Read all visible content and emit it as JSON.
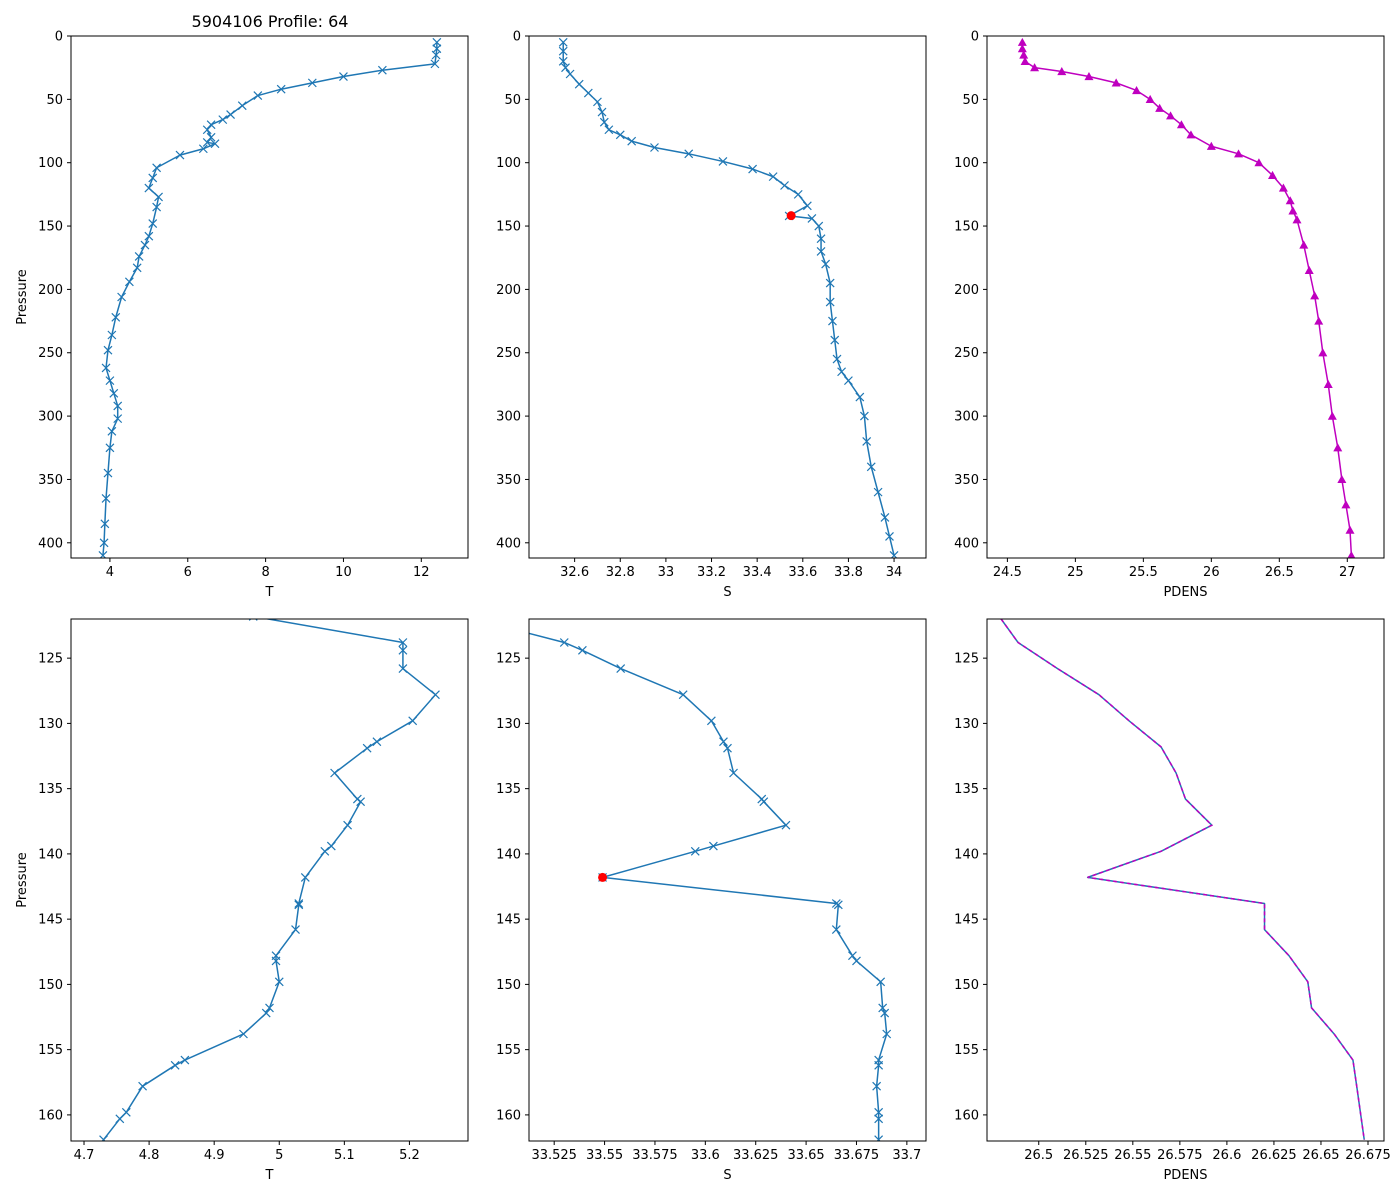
{
  "figure_title": "5904106 Profile: 64",
  "colors": {
    "line": "#1f77b4",
    "density": "#bf00bf",
    "flag": "#ff0000",
    "axes": "#000000"
  },
  "chart_data": [
    {
      "type": "line",
      "row": 0,
      "col": 0,
      "xlabel": "T",
      "ylabel": "Pressure",
      "xlim": [
        3.0,
        13.2
      ],
      "ylim": [
        0,
        412
      ],
      "xticks": [
        4,
        6,
        8,
        10,
        12
      ],
      "yticks": [
        0,
        50,
        100,
        150,
        200,
        250,
        300,
        350,
        400
      ],
      "marker": "x",
      "line_color": "#1f77b4",
      "marker_color": "#1f77b4",
      "x": [
        12.4,
        12.4,
        12.38,
        12.35,
        11.0,
        10.0,
        9.2,
        8.4,
        7.8,
        7.4,
        7.1,
        6.9,
        6.6,
        6.5,
        6.6,
        6.5,
        6.7,
        6.4,
        5.8,
        5.2,
        5.1,
        5.0,
        5.25,
        5.2,
        5.1,
        5.0,
        4.9,
        4.75,
        4.7,
        4.5,
        4.3,
        4.15,
        4.05,
        3.95,
        3.9,
        4.0,
        4.1,
        4.2,
        4.2,
        4.05,
        4.0,
        3.95,
        3.9,
        3.87,
        3.85,
        3.82
      ],
      "y": [
        5,
        10,
        15,
        22,
        27,
        32,
        37,
        42,
        47,
        55,
        62,
        66,
        70,
        74,
        80,
        84,
        85,
        89,
        94,
        104,
        112,
        120,
        127,
        135,
        148,
        158,
        165,
        174,
        183,
        194,
        206,
        222,
        236,
        248,
        262,
        272,
        282,
        292,
        302,
        312,
        325,
        345,
        365,
        385,
        400,
        410
      ]
    },
    {
      "type": "line",
      "row": 0,
      "col": 1,
      "xlabel": "S",
      "ylabel": "",
      "xlim": [
        32.4,
        34.14
      ],
      "ylim": [
        0,
        412
      ],
      "xticks": [
        32.6,
        32.8,
        33.0,
        33.2,
        33.4,
        33.6,
        33.8,
        34.0
      ],
      "yticks": [
        0,
        50,
        100,
        150,
        200,
        250,
        300,
        350,
        400
      ],
      "marker": "x",
      "line_color": "#1f77b4",
      "marker_color": "#1f77b4",
      "x": [
        32.55,
        32.55,
        32.55,
        32.56,
        32.58,
        32.62,
        32.66,
        32.7,
        32.72,
        32.73,
        32.75,
        32.8,
        32.85,
        32.95,
        33.1,
        33.25,
        33.38,
        33.47,
        33.52,
        33.58,
        33.62,
        33.54,
        33.64,
        33.67,
        33.68,
        33.68,
        33.7,
        33.72,
        33.72,
        33.73,
        33.74,
        33.75,
        33.77,
        33.8,
        33.85,
        33.87,
        33.88,
        33.9,
        33.93,
        33.96,
        33.98,
        34.0
      ],
      "y": [
        5,
        12,
        20,
        25,
        30,
        38,
        45,
        52,
        60,
        68,
        74,
        78,
        83,
        88,
        93,
        99,
        105,
        111,
        118,
        125,
        134,
        142,
        144,
        150,
        160,
        170,
        180,
        195,
        210,
        225,
        240,
        255,
        265,
        272,
        285,
        300,
        320,
        340,
        360,
        380,
        395,
        410
      ],
      "flag_points": [
        {
          "x": 33.549,
          "y": 141.8
        }
      ]
    },
    {
      "type": "line",
      "row": 0,
      "col": 2,
      "xlabel": "PDENS",
      "ylabel": "",
      "xlim": [
        24.35,
        27.27
      ],
      "ylim": [
        0,
        412
      ],
      "xticks": [
        24.5,
        25.0,
        25.5,
        26.0,
        26.5,
        27.0
      ],
      "yticks": [
        0,
        50,
        100,
        150,
        200,
        250,
        300,
        350,
        400
      ],
      "marker": "triangle",
      "line_color": "#bf00bf",
      "marker_color": "#bf00bf",
      "x": [
        24.61,
        24.61,
        24.62,
        24.63,
        24.7,
        24.9,
        25.1,
        25.3,
        25.45,
        25.55,
        25.62,
        25.7,
        25.78,
        25.85,
        26.0,
        26.2,
        26.35,
        26.45,
        26.53,
        26.58,
        26.6,
        26.63,
        26.68,
        26.72,
        26.76,
        26.79,
        26.82,
        26.86,
        26.89,
        26.93,
        26.96,
        26.99,
        27.02,
        27.03
      ],
      "y": [
        5,
        10,
        15,
        20,
        25,
        28,
        32,
        37,
        43,
        50,
        57,
        63,
        70,
        78,
        87,
        93,
        100,
        110,
        120,
        130,
        138,
        145,
        165,
        185,
        205,
        225,
        250,
        275,
        300,
        325,
        350,
        370,
        390,
        410
      ]
    },
    {
      "type": "line",
      "row": 1,
      "col": 0,
      "xlabel": "T",
      "ylabel": "Pressure",
      "xlim": [
        4.68,
        5.29
      ],
      "ylim": [
        122,
        162
      ],
      "xticks": [
        4.7,
        4.8,
        4.9,
        5.0,
        5.1,
        5.2
      ],
      "yticks": [
        125,
        130,
        135,
        140,
        145,
        150,
        155,
        160
      ],
      "marker": "x",
      "line_color": "#1f77b4",
      "marker_color": "#1f77b4",
      "x": [
        4.96,
        5.19,
        5.19,
        5.19,
        5.24,
        5.205,
        5.15,
        5.135,
        5.085,
        5.12,
        5.125,
        5.105,
        5.08,
        5.07,
        5.04,
        5.03,
        5.03,
        5.025,
        4.995,
        4.995,
        5.0,
        4.985,
        4.98,
        4.945,
        4.855,
        4.84,
        4.79,
        4.765,
        4.755,
        4.73
      ],
      "y": [
        121.8,
        123.8,
        124.4,
        125.8,
        127.8,
        129.8,
        131.4,
        131.9,
        133.8,
        135.8,
        136.0,
        137.8,
        139.4,
        139.8,
        141.8,
        143.8,
        143.9,
        145.8,
        147.8,
        148.2,
        149.8,
        151.8,
        152.2,
        153.8,
        155.8,
        156.2,
        157.8,
        159.8,
        160.3,
        161.9
      ]
    },
    {
      "type": "line",
      "row": 1,
      "col": 1,
      "xlabel": "S",
      "ylabel": "",
      "xlim": [
        33.5125,
        33.7095
      ],
      "ylim": [
        122,
        162
      ],
      "xticks": [
        33.525,
        33.55,
        33.575,
        33.6,
        33.625,
        33.65,
        33.675,
        33.7
      ],
      "yticks": [
        125,
        130,
        135,
        140,
        145,
        150,
        155,
        160
      ],
      "marker": "x",
      "line_color": "#1f77b4",
      "marker_color": "#1f77b4",
      "x": [
        33.51,
        33.53,
        33.539,
        33.558,
        33.589,
        33.603,
        33.609,
        33.611,
        33.614,
        33.628,
        33.629,
        33.64,
        33.604,
        33.595,
        33.549,
        33.665,
        33.666,
        33.665,
        33.673,
        33.675,
        33.687,
        33.688,
        33.689,
        33.69,
        33.686,
        33.686,
        33.685,
        33.686,
        33.686,
        33.686
      ],
      "y": [
        123.0,
        123.8,
        124.4,
        125.8,
        127.8,
        129.8,
        131.4,
        131.9,
        133.8,
        135.8,
        136.0,
        137.8,
        139.4,
        139.8,
        141.8,
        143.8,
        143.9,
        145.8,
        147.8,
        148.2,
        149.8,
        151.8,
        152.2,
        153.8,
        155.8,
        156.2,
        157.8,
        159.8,
        160.3,
        161.9
      ],
      "flag_points": [
        {
          "x": 33.549,
          "y": 141.8
        }
      ]
    },
    {
      "type": "line",
      "row": 1,
      "col": 2,
      "xlabel": "PDENS",
      "ylabel": "",
      "xlim": [
        26.4725,
        26.6835
      ],
      "ylim": [
        122,
        162
      ],
      "xticks": [
        26.5,
        26.525,
        26.55,
        26.575,
        26.6,
        26.625,
        26.65,
        26.675
      ],
      "yticks": [
        125,
        130,
        135,
        140,
        145,
        150,
        155,
        160
      ],
      "marker": "none",
      "line_color": "#1f77b4",
      "marker_color": "#1f77b4",
      "overlay_color": "#bf00bf",
      "x": [
        26.48,
        26.489,
        26.51,
        26.532,
        26.548,
        26.565,
        26.573,
        26.578,
        26.592,
        26.565,
        26.526,
        26.62,
        26.62,
        26.633,
        26.643,
        26.645,
        26.657,
        26.667,
        26.669,
        26.673
      ],
      "y": [
        122.0,
        123.8,
        125.8,
        127.8,
        129.8,
        131.8,
        133.8,
        135.8,
        137.8,
        139.8,
        141.8,
        143.8,
        145.8,
        147.8,
        149.8,
        151.8,
        153.8,
        155.8,
        157.8,
        161.9
      ]
    }
  ]
}
